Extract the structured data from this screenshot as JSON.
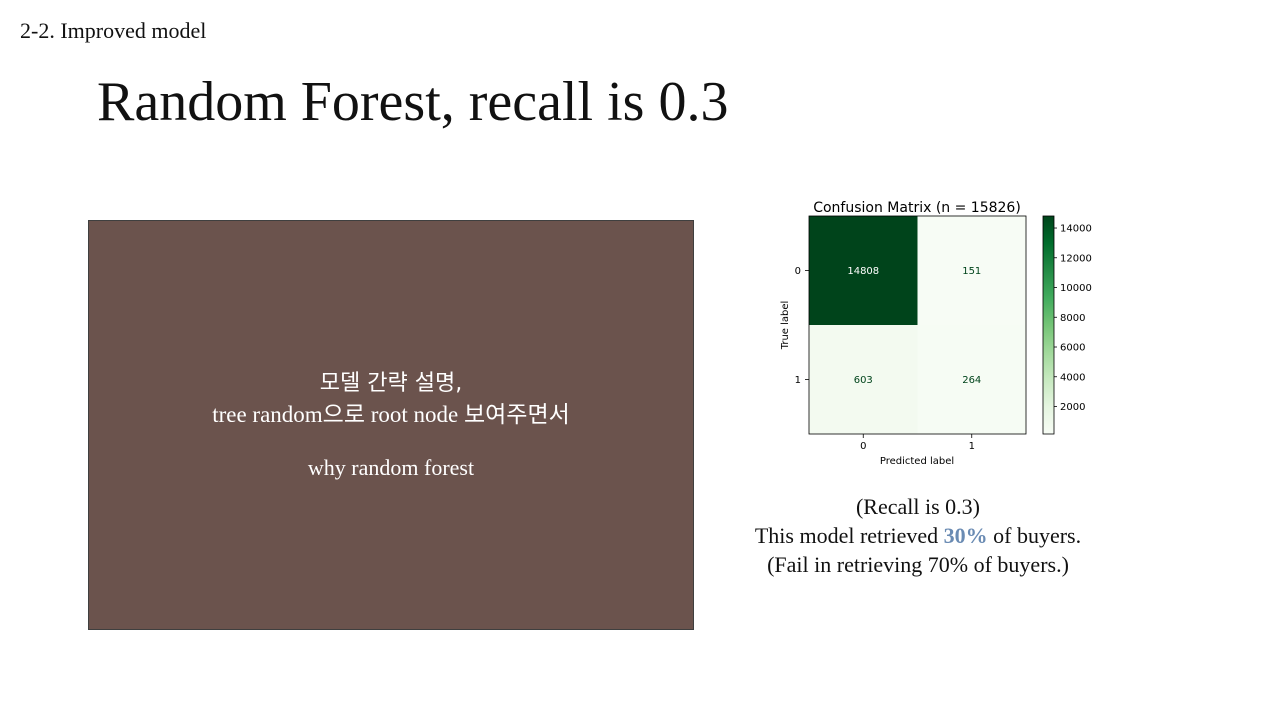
{
  "slide": {
    "section_label": "2-2. Improved model",
    "title": "Random Forest, recall is 0.3"
  },
  "placeholder": {
    "line1": "모델 간략 설명,",
    "line2": "tree random으로 root node 보여주면서",
    "line3": "why random forest",
    "fill_color": "#6b534d"
  },
  "caption": {
    "line1": "(Recall is 0.3)",
    "line2_prefix": "This model retrieved ",
    "line2_highlight": "30%",
    "line2_suffix": " of  buyers.",
    "line3": "(Fail in retrieving 70% of  buyers.)",
    "highlight_color": "#6a8bb3"
  },
  "chart_data": {
    "type": "heatmap",
    "title": "Confusion Matrix (n = 15826)",
    "xlabel": "Predicted label",
    "ylabel": "True label",
    "x_categories": [
      "0",
      "1"
    ],
    "y_categories": [
      "0",
      "1"
    ],
    "matrix": [
      [
        14808,
        151
      ],
      [
        603,
        264
      ]
    ],
    "colormap": "Greens",
    "colorbar_ticks": [
      2000,
      4000,
      6000,
      8000,
      10000,
      12000,
      14000
    ],
    "colorbar_range": [
      151,
      14808
    ]
  }
}
